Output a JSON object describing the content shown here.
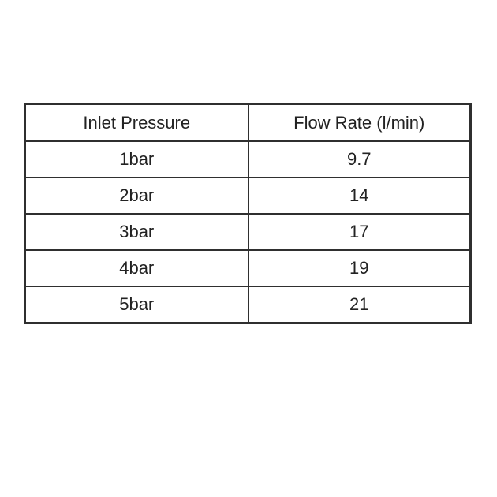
{
  "table": {
    "header": [
      "Inlet Pressure",
      "Flow Rate (l/min)"
    ],
    "rows": [
      [
        "1bar",
        9.7
      ],
      [
        "2bar",
        14
      ],
      [
        "3bar",
        17
      ],
      [
        "4bar",
        19
      ],
      [
        "5bar",
        21
      ]
    ]
  }
}
